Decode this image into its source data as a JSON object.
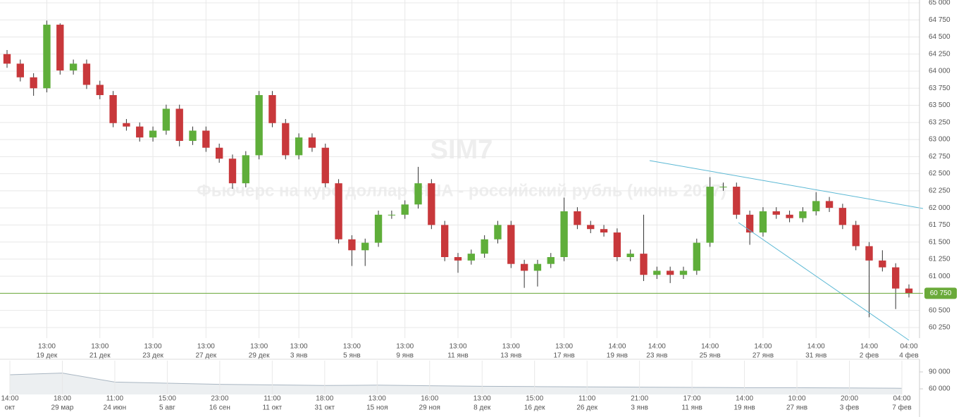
{
  "chart_data": [
    {
      "type": "candlestick",
      "title": "SIM7",
      "subtitle": "Фьючерс на курс доллар США - российский рубль (июнь 2017)",
      "up_color": "#5fae3a",
      "down_color": "#c8383b",
      "categories": [
        null,
        null,
        null,
        "13:00",
        null,
        null,
        null,
        "13:00",
        null,
        null,
        null,
        "13:00",
        null,
        null,
        null,
        "13:00",
        null,
        null,
        null,
        "13:00",
        null,
        null,
        "13:00",
        null,
        null,
        null,
        "13:00",
        null,
        null,
        null,
        "13:00",
        null,
        null,
        null,
        "13:00",
        null,
        null,
        null,
        "13:00",
        null,
        null,
        null,
        "13:00",
        null,
        null,
        null,
        "14:00",
        null,
        null,
        "14:00",
        null,
        null,
        null,
        "14:00",
        null,
        null,
        null,
        "14:00",
        null,
        null,
        null,
        "14:00",
        null,
        null,
        null,
        "14:00",
        null,
        null,
        "04:00"
      ],
      "category_dates": [
        null,
        null,
        null,
        "19 дек",
        null,
        null,
        null,
        "21 дек",
        null,
        null,
        null,
        "23 дек",
        null,
        null,
        null,
        "27 дек",
        null,
        null,
        null,
        "29 дек",
        null,
        null,
        "3 янв",
        null,
        null,
        null,
        "5 янв",
        null,
        null,
        null,
        "9 янв",
        null,
        null,
        null,
        "11 янв",
        null,
        null,
        null,
        "13 янв",
        null,
        null,
        null,
        "17 янв",
        null,
        null,
        null,
        "19 янв",
        null,
        null,
        "23 янв",
        null,
        null,
        null,
        "25 янв",
        null,
        null,
        null,
        "27 янв",
        null,
        null,
        null,
        "31 янв",
        null,
        null,
        null,
        "2 фев",
        null,
        null,
        "4 фев"
      ],
      "open": [
        64250,
        64110,
        63910,
        63750,
        64680,
        64010,
        64110,
        63800,
        63650,
        63240,
        63190,
        63030,
        63130,
        63450,
        62980,
        63130,
        62880,
        62720,
        62360,
        62770,
        63650,
        63240,
        62770,
        63030,
        62880,
        62360,
        61540,
        61380,
        61490,
        61900,
        61900,
        62050,
        62360,
        61750,
        61280,
        61230,
        61330,
        61540,
        61750,
        61180,
        61080,
        61180,
        61280,
        61950,
        61750,
        61690,
        61640,
        61280,
        61330,
        61020,
        61080,
        61020,
        61080,
        61490,
        62310,
        62310,
        61900,
        61640,
        61950,
        61900,
        61850,
        61950,
        62100,
        62000,
        61750,
        61440,
        61230,
        61130,
        60820
      ],
      "high": [
        64310,
        64170,
        63970,
        64740,
        64700,
        64170,
        64170,
        63860,
        63710,
        63300,
        63250,
        63190,
        63510,
        63510,
        63190,
        63190,
        62940,
        62780,
        62830,
        63710,
        63710,
        63300,
        63090,
        63090,
        62940,
        62420,
        61600,
        61550,
        61960,
        61960,
        62110,
        62600,
        62420,
        61810,
        61340,
        61390,
        61600,
        61810,
        61810,
        61240,
        61240,
        61340,
        62150,
        62010,
        61810,
        61750,
        61700,
        61390,
        61900,
        61140,
        61140,
        61140,
        61550,
        62450,
        62370,
        62370,
        61960,
        62010,
        62010,
        61960,
        62010,
        62230,
        62160,
        62060,
        61810,
        61500,
        61380,
        61190,
        60880
      ],
      "low": [
        64050,
        63850,
        63640,
        63690,
        63950,
        63950,
        63740,
        63590,
        63180,
        63130,
        62970,
        62970,
        63070,
        62900,
        62920,
        62820,
        62660,
        62280,
        62300,
        62710,
        63180,
        62710,
        62710,
        62820,
        62300,
        61480,
        61150,
        61150,
        61430,
        61840,
        61840,
        61990,
        61690,
        61220,
        61050,
        61170,
        61270,
        61480,
        61120,
        60830,
        60850,
        61120,
        61220,
        61690,
        61630,
        61580,
        61220,
        61220,
        60930,
        60960,
        60900,
        60960,
        61020,
        61430,
        62250,
        61840,
        61460,
        61580,
        61840,
        61790,
        61790,
        61890,
        61940,
        61690,
        61380,
        60400,
        61070,
        60520,
        60690
      ],
      "close": [
        64110,
        63910,
        63750,
        64680,
        64010,
        64110,
        63800,
        63650,
        63240,
        63190,
        63030,
        63130,
        63450,
        62980,
        63130,
        62880,
        62720,
        62360,
        62770,
        63650,
        63240,
        62770,
        63030,
        62880,
        62360,
        61540,
        61380,
        61490,
        61900,
        61900,
        62050,
        62360,
        61750,
        61280,
        61230,
        61330,
        61540,
        61750,
        61180,
        61080,
        61180,
        61280,
        61950,
        61750,
        61690,
        61640,
        61280,
        61330,
        61020,
        61080,
        61020,
        61080,
        61490,
        62310,
        62310,
        61900,
        61640,
        61950,
        61900,
        61850,
        61950,
        62100,
        62000,
        61750,
        61440,
        61230,
        61130,
        60820,
        60750
      ],
      "ylim": [
        60100,
        65000
      ],
      "yticks": [
        {
          "value": 60250,
          "label": "60 250"
        },
        {
          "value": 60500,
          "label": "60 500"
        },
        {
          "value": 60750,
          "label": "60 750"
        },
        {
          "value": 61000,
          "label": "61 000"
        },
        {
          "value": 61250,
          "label": "61 250"
        },
        {
          "value": 61500,
          "label": "61 500"
        },
        {
          "value": 61750,
          "label": "61 750"
        },
        {
          "value": 62000,
          "label": "62 000"
        },
        {
          "value": 62250,
          "label": "62 250"
        },
        {
          "value": 62500,
          "label": "62 500"
        },
        {
          "value": 62750,
          "label": "62 750"
        },
        {
          "value": 63000,
          "label": "63 000"
        },
        {
          "value": 63250,
          "label": "63 250"
        },
        {
          "value": 63500,
          "label": "63 500"
        },
        {
          "value": 63750,
          "label": "63 750"
        },
        {
          "value": 64000,
          "label": "64 000"
        },
        {
          "value": 64250,
          "label": "64 250"
        },
        {
          "value": 64500,
          "label": "64 500"
        },
        {
          "value": 64750,
          "label": "64 750"
        },
        {
          "value": 65000,
          "label": "65 000"
        }
      ],
      "last_price": {
        "value": 60750,
        "label": "60 750"
      },
      "last_color": "#6aaa3a",
      "grid": true
    },
    {
      "type": "area",
      "color": "#c8d0d8",
      "categories": [
        "14:00",
        "18:00",
        "11:00",
        "15:00",
        "23:00",
        "11:00",
        "18:00",
        "13:00",
        "16:00",
        "13:00",
        "15:00",
        "11:00",
        "21:00",
        "17:00",
        "14:00",
        "10:00",
        "20:00",
        "04:00"
      ],
      "category_dates": [
        "окт",
        "29 мар",
        "24 июн",
        "5 авг",
        "16 сен",
        "11 окт",
        "31 окт",
        "15 ноя",
        "29 ноя",
        "8 дек",
        "16 дек",
        "26 дек",
        "3 янв",
        "11 янв",
        "19 янв",
        "27 янв",
        "3 фев",
        "7 фев"
      ],
      "values": [
        85000,
        88000,
        72000,
        70000,
        68000,
        67000,
        66000,
        66500,
        65500,
        64500,
        64000,
        63500,
        63000,
        62500,
        62000,
        62000,
        61500,
        61000
      ],
      "ylim": [
        50000,
        110000
      ],
      "yticks": [
        {
          "value": 60000,
          "label": "60 000"
        },
        {
          "value": 90000,
          "label": "90 000"
        }
      ]
    }
  ]
}
